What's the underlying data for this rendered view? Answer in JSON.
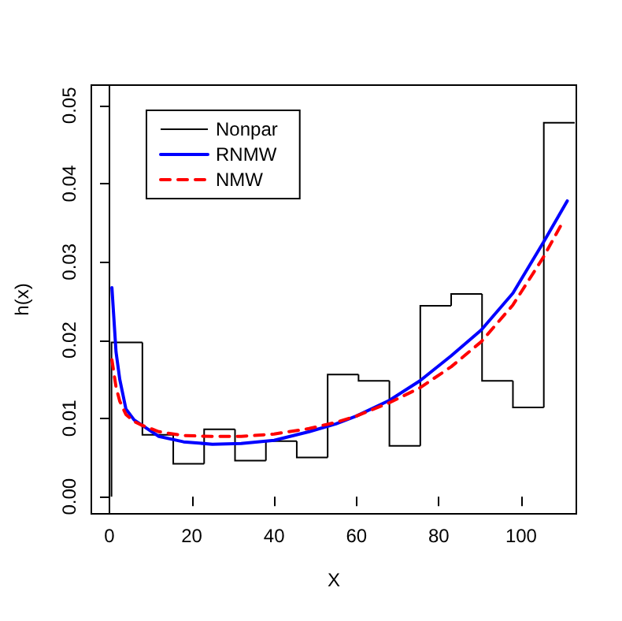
{
  "chart_data": {
    "type": "line",
    "xlabel": "X",
    "ylabel": "h(x)",
    "xlim": [
      -4.4,
      113.4
    ],
    "xticks": [
      0,
      20,
      40,
      60,
      80,
      100
    ],
    "ylim": [
      -0.0022,
      0.0526
    ],
    "yticks": [
      {
        "value": 0,
        "label": "0.00"
      },
      {
        "value": 0.01,
        "label": "0.01"
      },
      {
        "value": 0.02,
        "label": "0.02"
      },
      {
        "value": 0.03,
        "label": "0.03"
      },
      {
        "value": 0.04,
        "label": "0.04"
      },
      {
        "value": 0.05,
        "label": "0.05"
      }
    ],
    "grid": false,
    "legend": "top left",
    "ref_lines": [
      {
        "axis": "x",
        "value": 0,
        "color": "#000000"
      }
    ],
    "series": [
      {
        "name": "Nonpar",
        "type": "histogram",
        "color": "#000000",
        "bins": [
          0.5,
          8,
          15.5,
          23,
          30.5,
          38,
          45.5,
          53,
          60.5,
          68,
          75.5,
          83,
          90.5,
          98,
          105.5,
          113
        ],
        "values": [
          0.0197,
          0.0079,
          0.0042,
          0.0086,
          0.0046,
          0.0071,
          0.005,
          0.0156,
          0.0148,
          0.0065,
          0.0244,
          0.0259,
          0.0148,
          0.0114,
          0.0478
        ]
      },
      {
        "name": "RNMW",
        "color": "#0000ff",
        "line_style": "solid",
        "x": [
          0.6,
          1.6,
          2.5,
          4,
          6,
          8,
          12,
          18,
          25,
          32,
          40,
          48.5,
          55,
          60,
          68,
          75.4,
          83,
          90.3,
          98,
          105.4,
          111.2
        ],
        "values": [
          0.0267,
          0.0185,
          0.015,
          0.0112,
          0.0098,
          0.0091,
          0.0077,
          0.007,
          0.0067,
          0.0068,
          0.0072,
          0.0083,
          0.0093,
          0.0103,
          0.0123,
          0.0148,
          0.018,
          0.0213,
          0.026,
          0.0325,
          0.0378
        ]
      },
      {
        "name": "NMW",
        "color": "#ff0000",
        "line_style": "dashed",
        "x": [
          0.6,
          1.6,
          2.5,
          4,
          6,
          8,
          12,
          18,
          25,
          32,
          40,
          48.5,
          55,
          60,
          68,
          75.4,
          83,
          90.3,
          98,
          105.4,
          110.1
        ],
        "values": [
          0.0175,
          0.014,
          0.0122,
          0.0105,
          0.0096,
          0.0091,
          0.0083,
          0.0078,
          0.0077,
          0.0077,
          0.008,
          0.0087,
          0.0095,
          0.0103,
          0.012,
          0.0139,
          0.0166,
          0.0198,
          0.0245,
          0.0306,
          0.0351
        ]
      }
    ]
  }
}
